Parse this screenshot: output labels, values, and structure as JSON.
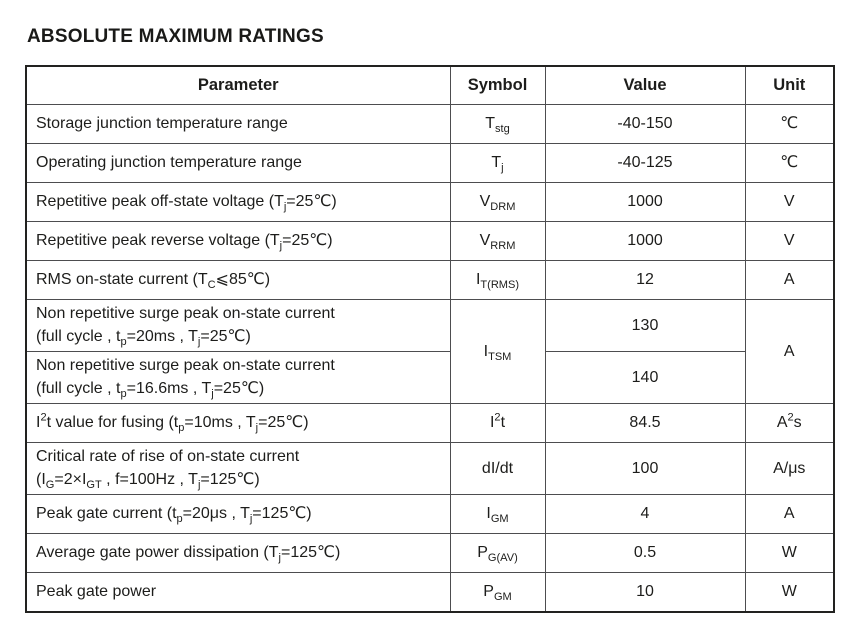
{
  "page": {
    "title": "ABSOLUTE MAXIMUM RATINGS"
  },
  "table": {
    "headers": {
      "parameter": "Parameter",
      "symbol": "Symbol",
      "value": "Value",
      "unit": "Unit"
    },
    "rows": [
      {
        "parameter": "Storage junction temperature range",
        "symbol": "T<sub>stg</sub>",
        "value": "-40-150",
        "unit": "℃"
      },
      {
        "parameter": "Operating junction temperature range",
        "symbol": "T<sub>j</sub>",
        "value": "-40-125",
        "unit": "℃"
      },
      {
        "parameter": "Repetitive peak off-state voltage (T<sub>j</sub>=25℃)",
        "symbol": "V<sub>DRM</sub>",
        "value": "1000",
        "unit": "V"
      },
      {
        "parameter": "Repetitive peak reverse voltage (T<sub>j</sub>=25℃)",
        "symbol": "V<sub>RRM</sub>",
        "value": "1000",
        "unit": "V"
      },
      {
        "parameter": "RMS on-state current (T<sub>C</sub>⩽85℃)",
        "symbol": "I<sub>T(RMS)</sub>",
        "value": "12",
        "unit": "A"
      },
      {
        "parameter": "Non repetitive surge peak on-state current<br>(full cycle , t<sub>p</sub>=20ms , T<sub>j</sub>=25℃)",
        "symbol": "I<sub>TSM</sub>",
        "value": "130",
        "unit": "A"
      },
      {
        "parameter": "Non repetitive surge peak on-state current<br>(full cycle , t<sub>p</sub>=16.6ms , T<sub>j</sub>=25℃)",
        "value": "140"
      },
      {
        "parameter": "I<sup>2</sup>t value for fusing (t<sub>p</sub>=10ms , T<sub>j</sub>=25℃)",
        "symbol": "I<sup>2</sup>t",
        "value": "84.5",
        "unit": "A<sup>2</sup>s"
      },
      {
        "parameter": "Critical rate of rise of on-state current<br>(I<sub>G</sub>=2×I<sub>GT</sub> , f=100Hz , T<sub>j</sub>=125℃)",
        "symbol": "dI/dt",
        "value": "100",
        "unit": "A/μs"
      },
      {
        "parameter": "Peak gate current (t<sub>p</sub>=20μs , T<sub>j</sub>=125℃)",
        "symbol": "I<sub>GM</sub>",
        "value": "4",
        "unit": "A"
      },
      {
        "parameter": "Average gate power dissipation (T<sub>j</sub>=125℃)",
        "symbol": "P<sub>G(AV)</sub>",
        "value": "0.5",
        "unit": "W"
      },
      {
        "parameter": "Peak gate power",
        "symbol": "P<sub>GM</sub>",
        "value": "10",
        "unit": "W"
      }
    ]
  }
}
